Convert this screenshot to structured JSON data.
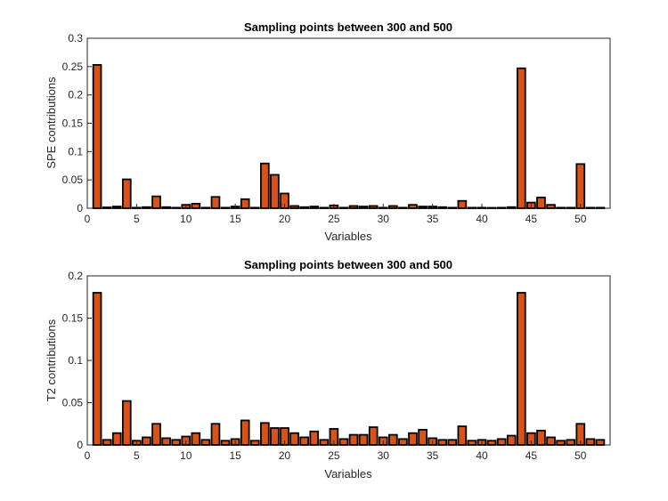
{
  "colors": {
    "bar_fill": "#d95319",
    "bar_edge": "#000000",
    "axis": "#262626",
    "background": "#ffffff"
  },
  "chart_data": [
    {
      "type": "bar",
      "title": "Sampling points between 300 and 500",
      "xlabel": "Variables",
      "ylabel": "SPE contributions",
      "xlim": [
        0,
        53
      ],
      "ylim": [
        0,
        0.3
      ],
      "xticks": [
        0,
        5,
        10,
        15,
        20,
        25,
        30,
        35,
        40,
        45,
        50
      ],
      "yticks": [
        0,
        0.05,
        0.1,
        0.15,
        0.2,
        0.25,
        0.3
      ],
      "ytick_labels": [
        "0",
        "0.05",
        "0.1",
        "0.15",
        "0.2",
        "0.25",
        "0.3"
      ],
      "grid": false,
      "categories": [
        1,
        2,
        3,
        4,
        5,
        6,
        7,
        8,
        9,
        10,
        11,
        12,
        13,
        14,
        15,
        16,
        17,
        18,
        19,
        20,
        21,
        22,
        23,
        24,
        25,
        26,
        27,
        28,
        29,
        30,
        31,
        32,
        33,
        34,
        35,
        36,
        37,
        38,
        39,
        40,
        41,
        42,
        43,
        44,
        45,
        46,
        47,
        48,
        49,
        50,
        51,
        52
      ],
      "values": [
        0.253,
        0.0015,
        0.003,
        0.051,
        0.001,
        0.002,
        0.021,
        0.002,
        0.001,
        0.006,
        0.008,
        0.001,
        0.02,
        0.001,
        0.003,
        0.016,
        0.001,
        0.079,
        0.059,
        0.026,
        0.004,
        0.002,
        0.003,
        0.001,
        0.005,
        0.001,
        0.004,
        0.003,
        0.004,
        0.001,
        0.004,
        0.001,
        0.006,
        0.003,
        0.003,
        0.002,
        0.001,
        0.013,
        0.001,
        0.001,
        0.0005,
        0.001,
        0.002,
        0.247,
        0.01,
        0.019,
        0.006,
        0.001,
        0.001,
        0.078,
        0.001,
        0.001
      ]
    },
    {
      "type": "bar",
      "title": "Sampling points between 300 and 500",
      "xlabel": "Variables",
      "ylabel": "T2 contributions",
      "xlim": [
        0,
        53
      ],
      "ylim": [
        0,
        0.2
      ],
      "xticks": [
        0,
        5,
        10,
        15,
        20,
        25,
        30,
        35,
        40,
        45,
        50
      ],
      "yticks": [
        0,
        0.05,
        0.1,
        0.15,
        0.2
      ],
      "ytick_labels": [
        "0",
        "0.05",
        "0.1",
        "0.15",
        "0.2"
      ],
      "grid": false,
      "categories": [
        1,
        2,
        3,
        4,
        5,
        6,
        7,
        8,
        9,
        10,
        11,
        12,
        13,
        14,
        15,
        16,
        17,
        18,
        19,
        20,
        21,
        22,
        23,
        24,
        25,
        26,
        27,
        28,
        29,
        30,
        31,
        32,
        33,
        34,
        35,
        36,
        37,
        38,
        39,
        40,
        41,
        42,
        43,
        44,
        45,
        46,
        47,
        48,
        49,
        50,
        51,
        52
      ],
      "values": [
        0.18,
        0.006,
        0.014,
        0.052,
        0.005,
        0.009,
        0.025,
        0.008,
        0.006,
        0.01,
        0.014,
        0.006,
        0.025,
        0.005,
        0.007,
        0.029,
        0.005,
        0.026,
        0.02,
        0.02,
        0.014,
        0.009,
        0.016,
        0.006,
        0.019,
        0.007,
        0.012,
        0.012,
        0.021,
        0.009,
        0.012,
        0.007,
        0.014,
        0.018,
        0.008,
        0.006,
        0.006,
        0.022,
        0.005,
        0.006,
        0.005,
        0.007,
        0.011,
        0.18,
        0.014,
        0.017,
        0.009,
        0.005,
        0.006,
        0.025,
        0.007,
        0.006
      ]
    }
  ]
}
